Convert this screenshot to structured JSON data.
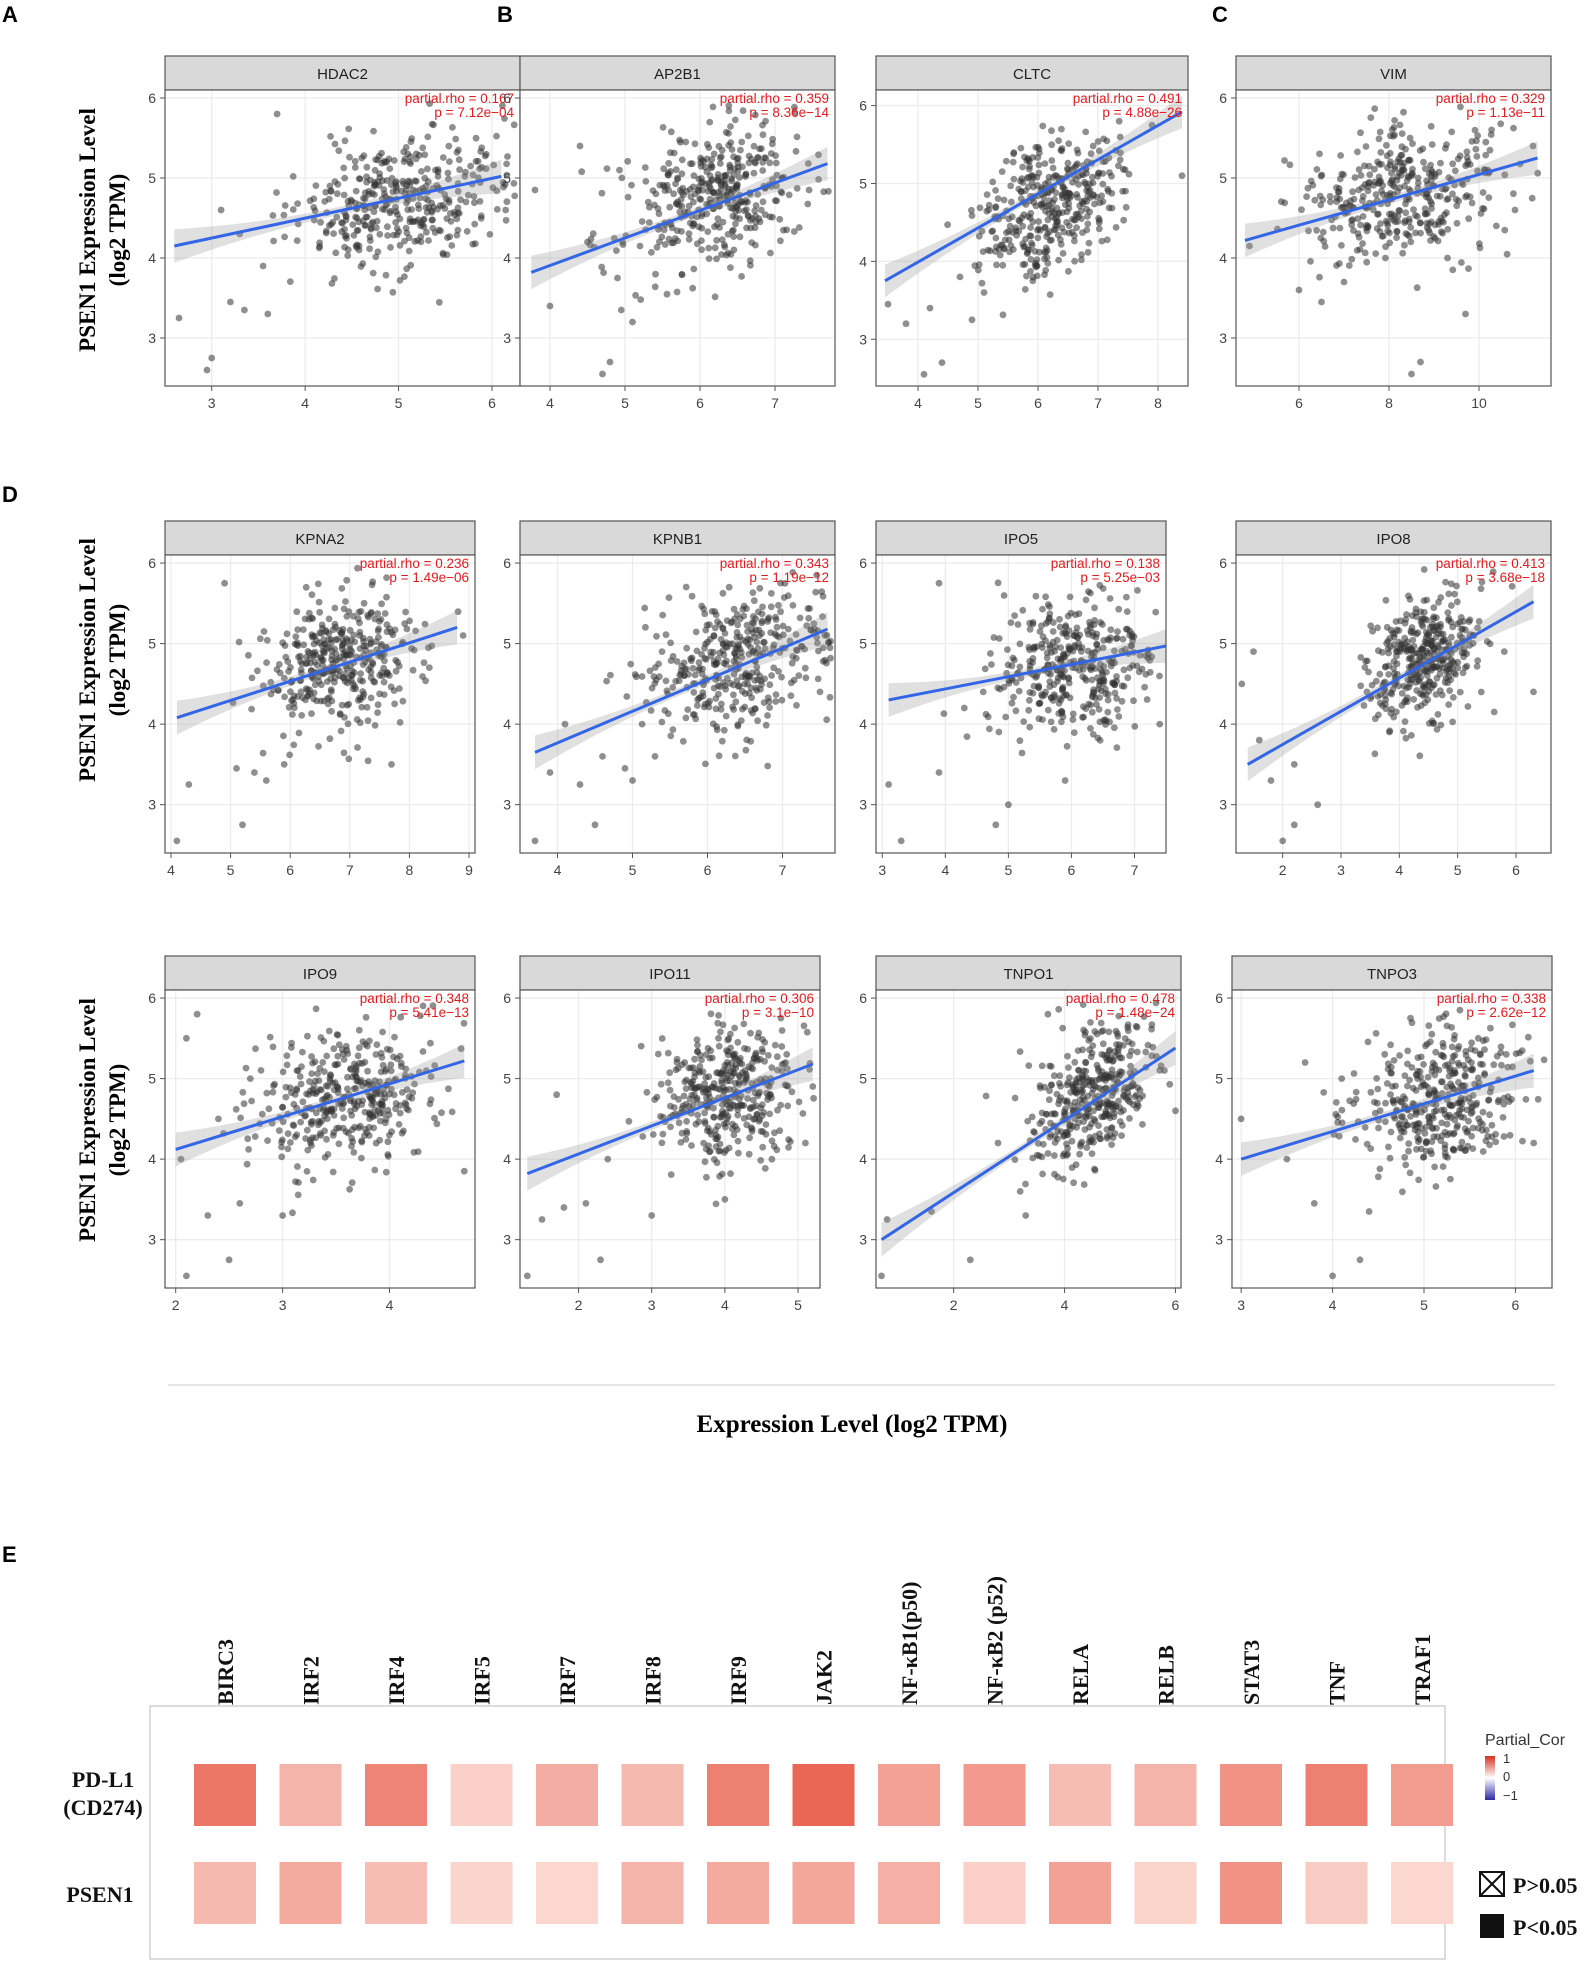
{
  "panel_letters": [
    "A",
    "B",
    "C",
    "D",
    "E"
  ],
  "y_axis_label": {
    "line1": "PSEN1 Expression Level",
    "line2": "(log2 TPM)"
  },
  "x_axis_label": "Expression  Level  (log2 TPM)",
  "colors": {
    "trend": "#3366e6",
    "point": "#333333",
    "stat": "#e41a1c",
    "strip": "#d9d9d9",
    "grid": "#ececec",
    "heat_high": "#e8604f",
    "heat_low": "#fde5e0"
  },
  "chart_data": [
    {
      "type": "scatter",
      "title": "HDAC2",
      "gene": "HDAC2",
      "rho_text": "partial.rho = 0.167",
      "p_text": "p = 7.12e−04",
      "xlim": [
        2.5,
        6.3
      ],
      "ylim": [
        2.4,
        6.1
      ],
      "xticks": [
        3,
        4,
        5,
        6
      ],
      "yticks": [
        3,
        4,
        5,
        6
      ],
      "trend": {
        "x": [
          2.6,
          6.1
        ],
        "y": [
          4.15,
          5.02
        ]
      },
      "cloud": {
        "cx": 5.05,
        "cy": 4.72,
        "sx": 0.55,
        "sy": 0.42
      },
      "seed": 11,
      "outliers": [
        [
          2.65,
          3.25
        ],
        [
          2.95,
          2.6
        ],
        [
          3.0,
          2.75
        ],
        [
          3.2,
          3.45
        ],
        [
          3.35,
          3.35
        ],
        [
          3.55,
          3.9
        ],
        [
          3.6,
          3.3
        ],
        [
          3.7,
          5.8
        ],
        [
          3.1,
          4.6
        ],
        [
          3.3,
          4.3
        ]
      ]
    },
    {
      "type": "scatter",
      "title": "AP2B1",
      "gene": "AP2B1",
      "rho_text": "partial.rho = 0.359",
      "p_text": "p = 8.36e−14",
      "xlim": [
        3.6,
        7.8
      ],
      "ylim": [
        2.4,
        6.1
      ],
      "xticks": [
        4,
        5,
        6,
        7
      ],
      "yticks": [
        3,
        4,
        5,
        6
      ],
      "trend": {
        "x": [
          3.75,
          7.7
        ],
        "y": [
          3.82,
          5.18
        ]
      },
      "cloud": {
        "cx": 6.2,
        "cy": 4.75,
        "sx": 0.6,
        "sy": 0.42
      },
      "seed": 23,
      "outliers": [
        [
          3.8,
          4.85
        ],
        [
          4.0,
          3.4
        ],
        [
          4.5,
          4.2
        ],
        [
          4.4,
          5.4
        ],
        [
          4.7,
          2.55
        ],
        [
          4.8,
          2.7
        ],
        [
          4.95,
          3.35
        ],
        [
          5.1,
          3.2
        ],
        [
          5.2,
          4.15
        ],
        [
          4.9,
          3.75
        ]
      ]
    },
    {
      "type": "scatter",
      "title": "CLTC",
      "gene": "CLTC",
      "rho_text": "partial.rho = 0.491",
      "p_text": "p = 4.88e−26",
      "xlim": [
        3.3,
        8.5
      ],
      "ylim": [
        2.4,
        6.2
      ],
      "xticks": [
        4,
        5,
        6,
        7,
        8
      ],
      "yticks": [
        3,
        4,
        5,
        6
      ],
      "trend": {
        "x": [
          3.45,
          8.4
        ],
        "y": [
          3.75,
          5.92
        ]
      },
      "cloud": {
        "cx": 6.2,
        "cy": 4.75,
        "sx": 0.55,
        "sy": 0.42
      },
      "seed": 37,
      "outliers": [
        [
          3.5,
          3.45
        ],
        [
          3.8,
          3.2
        ],
        [
          4.1,
          2.55
        ],
        [
          4.4,
          2.7
        ],
        [
          4.2,
          3.4
        ],
        [
          4.7,
          3.8
        ],
        [
          4.9,
          3.25
        ],
        [
          8.4,
          5.1
        ],
        [
          7.9,
          5.75
        ],
        [
          5.1,
          3.6
        ]
      ]
    },
    {
      "type": "scatter",
      "title": "VIM",
      "gene": "VIM",
      "rho_text": "partial.rho = 0.329",
      "p_text": "p = 1.13e−11",
      "xlim": [
        4.6,
        11.6
      ],
      "ylim": [
        2.4,
        6.1
      ],
      "xticks": [
        6,
        8,
        10
      ],
      "yticks": [
        3,
        4,
        5,
        6
      ],
      "trend": {
        "x": [
          4.8,
          11.3
        ],
        "y": [
          4.22,
          5.25
        ]
      },
      "cloud": {
        "cx": 8.3,
        "cy": 4.8,
        "sx": 1.15,
        "sy": 0.42
      },
      "seed": 41,
      "outliers": [
        [
          4.9,
          4.15
        ],
        [
          6.0,
          3.6
        ],
        [
          6.5,
          3.45
        ],
        [
          8.7,
          2.7
        ],
        [
          8.5,
          2.55
        ],
        [
          9.7,
          3.3
        ],
        [
          9.3,
          4.0
        ],
        [
          11.2,
          5.4
        ],
        [
          7.0,
          3.7
        ],
        [
          10.8,
          4.6
        ]
      ]
    },
    {
      "type": "scatter",
      "title": "KPNA2",
      "gene": "KPNA2",
      "rho_text": "partial.rho = 0.236",
      "p_text": "p = 1.49e−06",
      "xlim": [
        3.9,
        9.1
      ],
      "ylim": [
        2.4,
        6.1
      ],
      "xticks": [
        4,
        5,
        6,
        7,
        8,
        9
      ],
      "yticks": [
        3,
        4,
        5,
        6
      ],
      "trend": {
        "x": [
          4.1,
          8.8
        ],
        "y": [
          4.08,
          5.2
        ]
      },
      "cloud": {
        "cx": 6.9,
        "cy": 4.75,
        "sx": 0.7,
        "sy": 0.42
      },
      "seed": 53,
      "outliers": [
        [
          4.1,
          2.55
        ],
        [
          4.3,
          3.25
        ],
        [
          5.2,
          2.75
        ],
        [
          5.1,
          3.45
        ],
        [
          5.6,
          3.3
        ],
        [
          5.9,
          3.5
        ],
        [
          4.9,
          5.75
        ],
        [
          8.9,
          5.1
        ],
        [
          7.7,
          3.5
        ],
        [
          5.4,
          3.4
        ]
      ]
    },
    {
      "type": "scatter",
      "title": "KPNB1",
      "gene": "KPNB1",
      "rho_text": "partial.rho = 0.343",
      "p_text": "p = 1.19e−12",
      "xlim": [
        3.5,
        7.7
      ],
      "ylim": [
        2.4,
        6.1
      ],
      "xticks": [
        4,
        5,
        6,
        7
      ],
      "yticks": [
        3,
        4,
        5,
        6
      ],
      "trend": {
        "x": [
          3.7,
          7.6
        ],
        "y": [
          3.65,
          5.18
        ]
      },
      "cloud": {
        "cx": 6.4,
        "cy": 4.75,
        "sx": 0.6,
        "sy": 0.42
      },
      "seed": 67,
      "outliers": [
        [
          3.7,
          2.55
        ],
        [
          3.9,
          3.4
        ],
        [
          4.3,
          3.25
        ],
        [
          4.5,
          2.75
        ],
        [
          4.9,
          3.45
        ],
        [
          5.0,
          3.3
        ],
        [
          4.6,
          3.6
        ],
        [
          7.5,
          4.4
        ],
        [
          5.3,
          3.6
        ],
        [
          4.1,
          4.0
        ]
      ]
    },
    {
      "type": "scatter",
      "title": "IPO5",
      "gene": "IPO5",
      "rho_text": "partial.rho = 0.138",
      "p_text": "p = 5.25e−03",
      "xlim": [
        2.9,
        7.5
      ],
      "ylim": [
        2.4,
        6.1
      ],
      "xticks": [
        3,
        4,
        5,
        6,
        7
      ],
      "yticks": [
        3,
        4,
        5,
        6
      ],
      "trend": {
        "x": [
          3.1,
          7.5
        ],
        "y": [
          4.3,
          4.97
        ]
      },
      "cloud": {
        "cx": 6.0,
        "cy": 4.75,
        "sx": 0.65,
        "sy": 0.42
      },
      "seed": 79,
      "outliers": [
        [
          3.1,
          3.25
        ],
        [
          3.3,
          2.55
        ],
        [
          3.9,
          5.75
        ],
        [
          3.9,
          3.4
        ],
        [
          4.8,
          2.75
        ],
        [
          4.6,
          4.4
        ],
        [
          5.0,
          3.0
        ],
        [
          5.9,
          3.3
        ],
        [
          7.4,
          4.0
        ],
        [
          4.3,
          4.2
        ]
      ]
    },
    {
      "type": "scatter",
      "title": "IPO8",
      "gene": "IPO8",
      "rho_text": "partial.rho = 0.413",
      "p_text": "p = 3.68e−18",
      "xlim": [
        1.2,
        6.6
      ],
      "ylim": [
        2.4,
        6.1
      ],
      "xticks": [
        2,
        3,
        4,
        5,
        6
      ],
      "yticks": [
        3,
        4,
        5,
        6
      ],
      "trend": {
        "x": [
          1.4,
          6.3
        ],
        "y": [
          3.5,
          5.52
        ]
      },
      "cloud": {
        "cx": 4.4,
        "cy": 4.8,
        "sx": 0.5,
        "sy": 0.4
      },
      "seed": 97,
      "outliers": [
        [
          1.3,
          4.5
        ],
        [
          1.5,
          4.9
        ],
        [
          1.8,
          3.3
        ],
        [
          2.0,
          2.55
        ],
        [
          2.2,
          2.75
        ],
        [
          2.2,
          3.5
        ],
        [
          2.6,
          3.0
        ],
        [
          1.6,
          3.8
        ],
        [
          6.3,
          4.4
        ],
        [
          5.8,
          4.9
        ]
      ]
    },
    {
      "type": "scatter",
      "title": "IPO9",
      "gene": "IPO9",
      "rho_text": "partial.rho = 0.348",
      "p_text": "p = 5.41e−13",
      "xlim": [
        1.9,
        4.8
      ],
      "ylim": [
        2.4,
        6.1
      ],
      "xticks": [
        2,
        3,
        4
      ],
      "yticks": [
        3,
        4,
        5,
        6
      ],
      "trend": {
        "x": [
          2.0,
          4.7
        ],
        "y": [
          4.12,
          5.22
        ]
      },
      "cloud": {
        "cx": 3.6,
        "cy": 4.75,
        "sx": 0.42,
        "sy": 0.42
      },
      "seed": 101,
      "outliers": [
        [
          2.05,
          4.0
        ],
        [
          2.1,
          2.55
        ],
        [
          2.3,
          3.3
        ],
        [
          2.5,
          2.75
        ],
        [
          2.6,
          3.45
        ],
        [
          3.0,
          3.3
        ],
        [
          2.2,
          5.8
        ],
        [
          2.1,
          5.5
        ],
        [
          4.7,
          3.85
        ],
        [
          2.4,
          4.5
        ]
      ]
    },
    {
      "type": "scatter",
      "title": "IPO11",
      "gene": "IPO11",
      "rho_text": "partial.rho = 0.306",
      "p_text": "p = 3.1e−10",
      "xlim": [
        1.2,
        5.3
      ],
      "ylim": [
        2.4,
        6.1
      ],
      "xticks": [
        2,
        3,
        4,
        5
      ],
      "yticks": [
        3,
        4,
        5,
        6
      ],
      "trend": {
        "x": [
          1.3,
          5.2
        ],
        "y": [
          3.82,
          5.18
        ]
      },
      "cloud": {
        "cx": 4.0,
        "cy": 4.78,
        "sx": 0.48,
        "sy": 0.42
      },
      "seed": 113,
      "outliers": [
        [
          1.3,
          2.55
        ],
        [
          1.5,
          3.25
        ],
        [
          1.8,
          3.4
        ],
        [
          2.3,
          2.75
        ],
        [
          2.1,
          3.45
        ],
        [
          2.4,
          4.0
        ],
        [
          3.0,
          3.3
        ],
        [
          4.0,
          3.5
        ],
        [
          5.1,
          4.2
        ],
        [
          1.7,
          4.8
        ]
      ]
    },
    {
      "type": "scatter",
      "title": "TNPO1",
      "gene": "TNPO1",
      "rho_text": "partial.rho = 0.478",
      "p_text": "p = 1.48e−24",
      "xlim": [
        0.6,
        6.1
      ],
      "ylim": [
        2.4,
        6.1
      ],
      "xticks": [
        2,
        4,
        6
      ],
      "yticks": [
        3,
        4,
        5,
        6
      ],
      "trend": {
        "x": [
          0.7,
          6.0
        ],
        "y": [
          3.0,
          5.38
        ]
      },
      "cloud": {
        "cx": 4.5,
        "cy": 4.8,
        "sx": 0.55,
        "sy": 0.4
      },
      "seed": 127,
      "outliers": [
        [
          0.7,
          2.55
        ],
        [
          0.8,
          3.25
        ],
        [
          1.6,
          3.35
        ],
        [
          2.3,
          2.75
        ],
        [
          3.3,
          3.3
        ],
        [
          3.2,
          3.6
        ],
        [
          2.8,
          4.2
        ],
        [
          6.0,
          4.6
        ],
        [
          5.8,
          5.1
        ],
        [
          3.7,
          5.8
        ]
      ]
    },
    {
      "type": "scatter",
      "title": "TNPO3",
      "gene": "TNPO3",
      "rho_text": "partial.rho = 0.338",
      "p_text": "p = 2.62e−12",
      "xlim": [
        2.9,
        6.4
      ],
      "ylim": [
        2.4,
        6.1
      ],
      "xticks": [
        3,
        4,
        5,
        6
      ],
      "yticks": [
        3,
        4,
        5,
        6
      ],
      "trend": {
        "x": [
          3.0,
          6.2
        ],
        "y": [
          4.0,
          5.1
        ]
      },
      "cloud": {
        "cx": 5.1,
        "cy": 4.75,
        "sx": 0.45,
        "sy": 0.42
      },
      "seed": 131,
      "outliers": [
        [
          3.0,
          4.5
        ],
        [
          3.8,
          3.45
        ],
        [
          4.0,
          2.55
        ],
        [
          4.3,
          2.75
        ],
        [
          4.4,
          3.35
        ],
        [
          3.7,
          5.2
        ],
        [
          4.1,
          5.0
        ],
        [
          6.2,
          4.2
        ],
        [
          5.9,
          5.3
        ],
        [
          3.5,
          4.0
        ]
      ]
    },
    {
      "type": "heatmap",
      "title": "",
      "columns": [
        "BIRC3",
        "IRF2",
        "IRF4",
        "IRF5",
        "IRF7",
        "IRF8",
        "IRF9",
        "JAK2",
        "NF-κB1(p50)",
        "NF-κB2 (p52)",
        "RELA",
        "RELB",
        "STAT3",
        "TNF",
        "TRAF1"
      ],
      "rows": [
        "PD-L1\n(CD274)",
        "PSEN1"
      ],
      "row_labels": [
        [
          "PD-L1",
          "(CD274)"
        ],
        [
          "PSEN1"
        ]
      ],
      "values": [
        [
          0.48,
          0.22,
          0.42,
          0.1,
          0.25,
          0.2,
          0.44,
          0.55,
          0.3,
          0.33,
          0.18,
          0.22,
          0.36,
          0.44,
          0.32
        ],
        [
          0.2,
          0.26,
          0.18,
          0.08,
          0.07,
          0.22,
          0.26,
          0.28,
          0.24,
          0.1,
          0.3,
          0.09,
          0.36,
          0.12,
          0.07
        ]
      ],
      "legend_title": "Partial_Cor",
      "legend_ticks": [
        "1",
        "0",
        "−1"
      ],
      "sig_labels": [
        "P>0.05",
        "P<0.05"
      ]
    }
  ]
}
